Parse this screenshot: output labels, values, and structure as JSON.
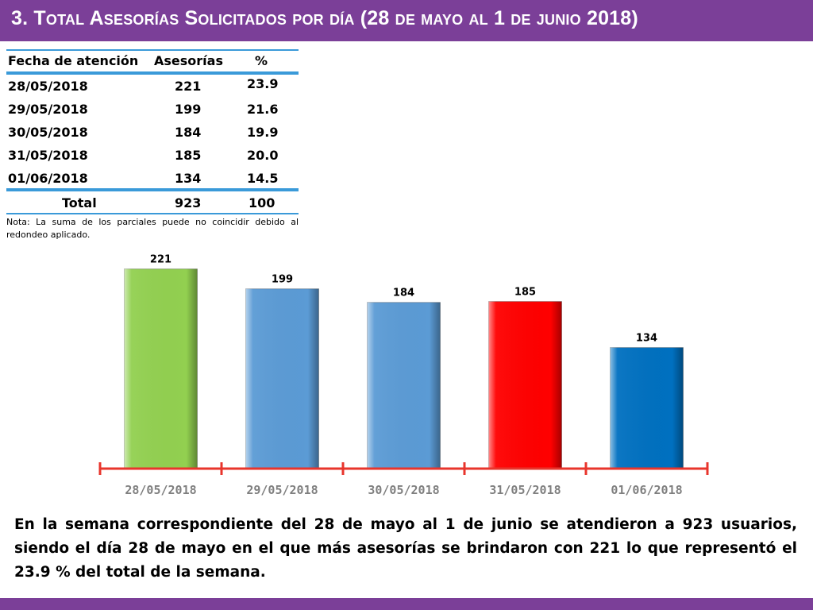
{
  "header": {
    "title": "3.  Total Asesorías Solicitados por día  (28 de mayo al 1 de junio 2018)"
  },
  "table": {
    "columns": [
      "Fecha de atención",
      "Asesorías",
      "%"
    ],
    "rows": [
      {
        "date": "28/05/2018",
        "count": "221",
        "pct": "23.9"
      },
      {
        "date": "29/05/2018",
        "count": "199",
        "pct": "21.6"
      },
      {
        "date": "30/05/2018",
        "count": "184",
        "pct": "19.9"
      },
      {
        "date": "31/05/2018",
        "count": "185",
        "pct": "20.0"
      },
      {
        "date": "01/06/2018",
        "count": "134",
        "pct": "14.5"
      }
    ],
    "total": {
      "label": "Total",
      "count": "923",
      "pct": "100"
    },
    "note": "Nota: La suma de los parciales puede no coincidir debido al redondeo aplicado."
  },
  "chart_data": {
    "type": "bar",
    "categories": [
      "28/05/2018",
      "29/05/2018",
      "30/05/2018",
      "31/05/2018",
      "01/06/2018"
    ],
    "values": [
      221,
      199,
      184,
      185,
      134
    ],
    "data_labels": [
      "221",
      "199",
      "184",
      "185",
      "134"
    ],
    "colors": [
      "#92d050",
      "#5b9bd5",
      "#5b9bd5",
      "#ff0000",
      "#0070c0"
    ],
    "axis_color": "#e8352c",
    "tick_label_color": "#7f7f7f",
    "title": "",
    "xlabel": "",
    "ylabel": "",
    "ylim": [
      0,
      240
    ],
    "grid": false,
    "legend": "none"
  },
  "summary": {
    "text": "En la semana correspondiente del 28 de mayo al 1 de junio se atendieron a 923 usuarios, siendo el día 28 de mayo en el que más asesorías se brindaron con 221 lo que representó el 23.9 % del total de la semana."
  },
  "colors": {
    "brand": "#7b3f98",
    "table_rule": "#3a9ad9"
  }
}
